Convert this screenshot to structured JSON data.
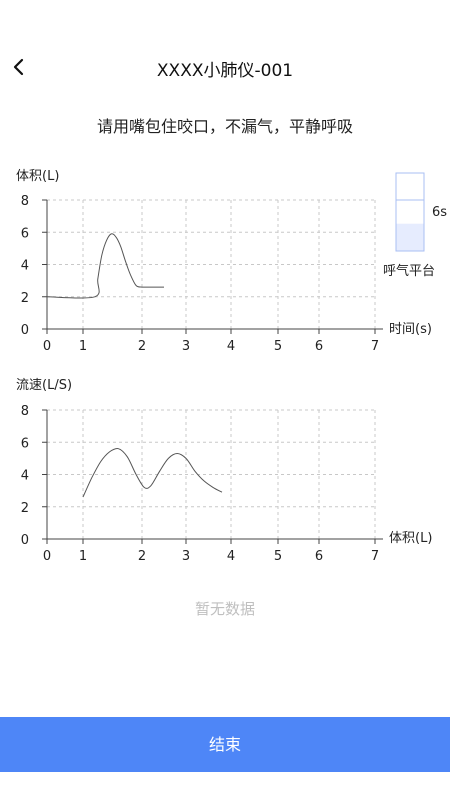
{
  "header": {
    "title": "XXXX小肺仪-001"
  },
  "instruction": "请用嘴包住咬口，不漏气，平静呼吸",
  "indicator": {
    "duration_label": "6s",
    "label": "呼气平台",
    "fill_fraction": 0.35
  },
  "empty_text": "暂无数据",
  "finish_label": "结束",
  "colors": {
    "button": "#4e86f7",
    "indicator_fill": "#e6ecfe",
    "indicator_border": "#a9bff3",
    "curve": "#555555",
    "grid": "#c8c8c8"
  },
  "chart_data": [
    {
      "type": "line",
      "ylabel": "体积(L)",
      "xlabel": "时间(s)",
      "xlim": [
        0,
        7
      ],
      "ylim": [
        0,
        8
      ],
      "x_ticks": [
        0,
        1,
        2,
        3,
        4,
        5,
        6,
        7
      ],
      "y_ticks": [
        0,
        2,
        4,
        6,
        8
      ],
      "grid": true,
      "series": [
        {
          "x": [
            0,
            1.2,
            1.25,
            1.32,
            1.4,
            1.48,
            1.56,
            1.64,
            1.72,
            1.8,
            1.9,
            2.0,
            2.1,
            2.2,
            2.3,
            2.5
          ],
          "y": [
            2.0,
            2.0,
            3.1,
            4.6,
            5.5,
            5.9,
            5.7,
            5.1,
            4.2,
            3.4,
            2.7,
            2.6,
            2.6,
            2.6,
            2.6,
            2.6
          ]
        }
      ]
    },
    {
      "type": "line",
      "ylabel": "流速(L/S)",
      "xlabel": "体积(L)",
      "xlim": [
        0,
        7
      ],
      "ylim": [
        0,
        8
      ],
      "x_ticks": [
        0,
        1,
        2,
        3,
        4,
        5,
        6,
        7
      ],
      "y_ticks": [
        0,
        2,
        4,
        6,
        8
      ],
      "grid": true,
      "series": [
        {
          "x": [
            1.0,
            1.15,
            1.3,
            1.45,
            1.6,
            1.75,
            1.9,
            2.05,
            2.2,
            2.4,
            2.6,
            2.8,
            3.0,
            3.2,
            3.4,
            3.6,
            3.8
          ],
          "y": [
            2.6,
            3.8,
            4.8,
            5.4,
            5.6,
            5.1,
            4.0,
            3.2,
            3.3,
            4.2,
            5.0,
            5.3,
            5.0,
            4.2,
            3.6,
            3.2,
            2.9
          ]
        }
      ]
    }
  ]
}
